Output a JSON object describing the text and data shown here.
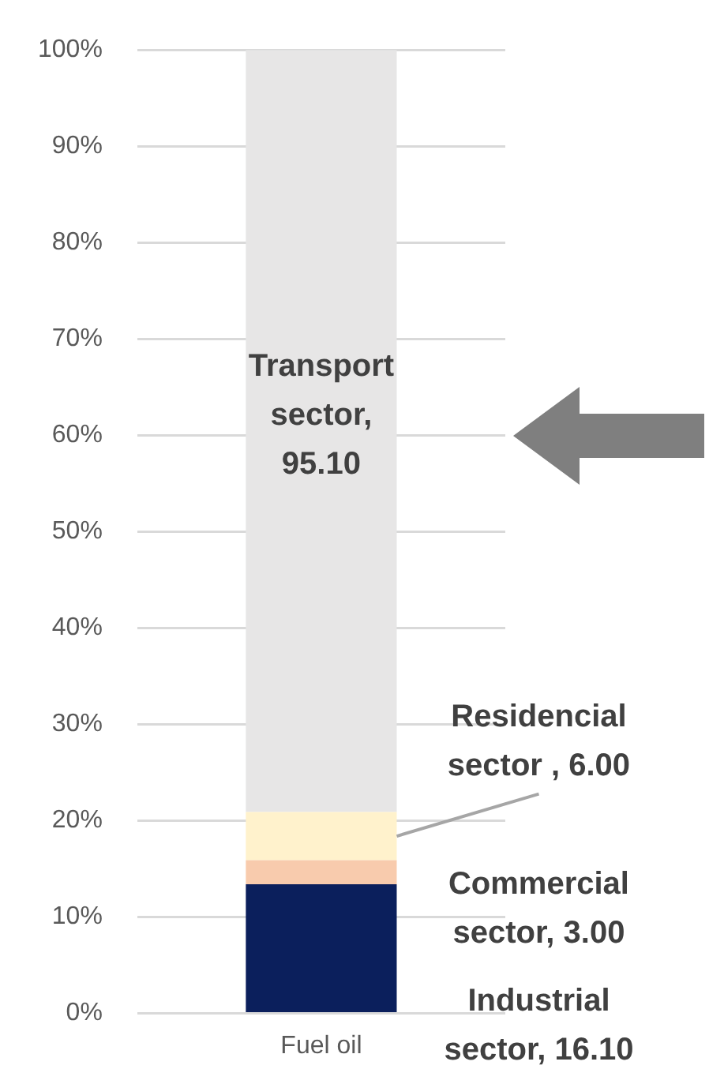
{
  "chart_data": {
    "type": "bar",
    "stacked": true,
    "categories": [
      "Fuel oil"
    ],
    "series": [
      {
        "color": "#0b1f5c",
        "values": [
          13.4
        ]
      },
      {
        "color": "#f8cbad",
        "values": [
          2.5
        ]
      },
      {
        "color": "#fff2cc",
        "values": [
          5.0
        ]
      },
      {
        "color": "#e7e6e6",
        "values": [
          79.1
        ]
      }
    ],
    "annotations": [
      "Industrial sector, 16.10",
      "Commercial sector, 3.00",
      "Residencial sector , 6.00",
      "Transport sector, 95.10"
    ],
    "ylim": [
      0,
      100
    ],
    "yticks": [
      {
        "value": 0,
        "label": "0%"
      },
      {
        "value": 10,
        "label": "10%"
      },
      {
        "value": 20,
        "label": "20%"
      },
      {
        "value": 30,
        "label": "30%"
      },
      {
        "value": 40,
        "label": "40%"
      },
      {
        "value": 50,
        "label": "50%"
      },
      {
        "value": 60,
        "label": "60%"
      },
      {
        "value": 70,
        "label": "70%"
      },
      {
        "value": 80,
        "label": "80%"
      },
      {
        "value": 90,
        "label": "90%"
      },
      {
        "value": 100,
        "label": "100%"
      }
    ],
    "grid": "y",
    "legend": false
  }
}
